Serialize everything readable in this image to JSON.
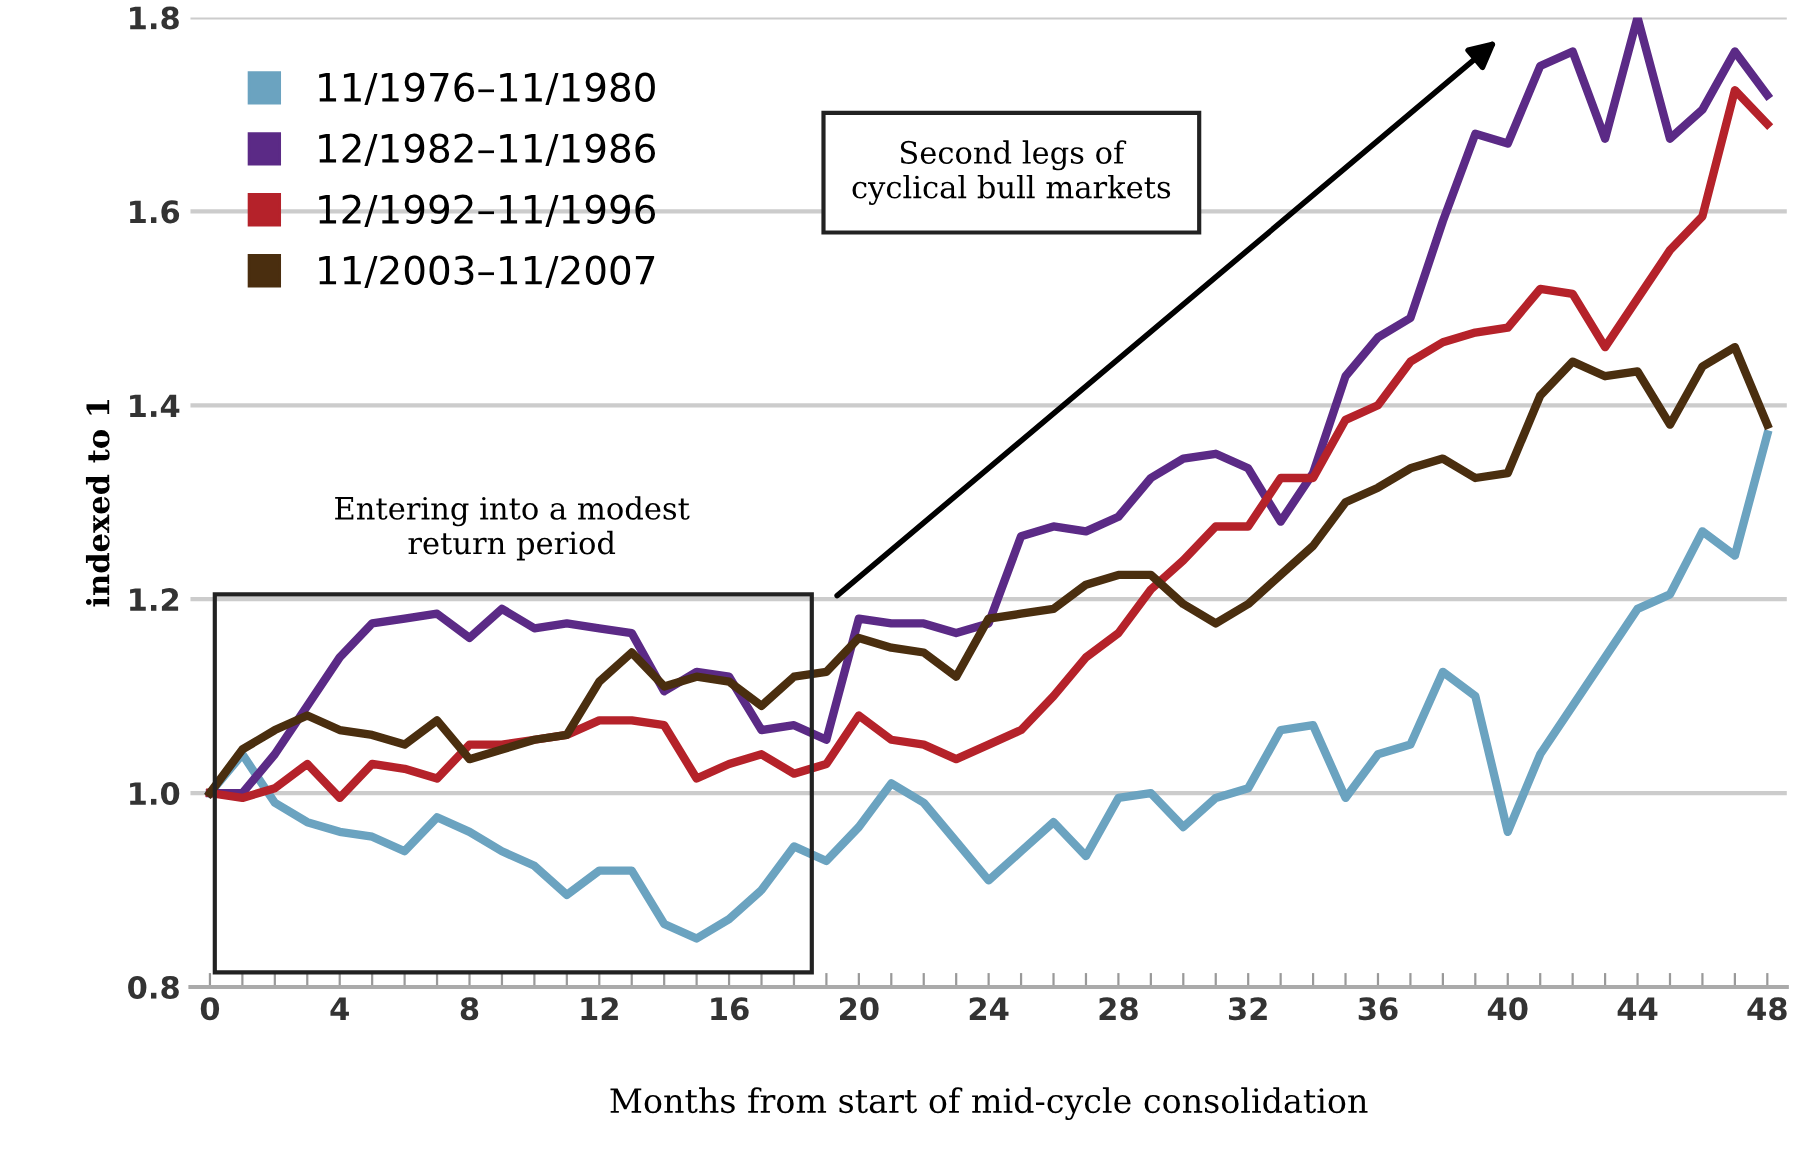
{
  "chart_data": {
    "type": "line",
    "xlabel": "Months from start of mid-cycle consolidation",
    "ylabel": "indexed to 1",
    "x": [
      0,
      1,
      2,
      3,
      4,
      5,
      6,
      7,
      8,
      9,
      10,
      11,
      12,
      13,
      14,
      15,
      16,
      17,
      18,
      19,
      20,
      21,
      22,
      23,
      24,
      25,
      26,
      27,
      28,
      29,
      30,
      31,
      32,
      33,
      34,
      35,
      36,
      37,
      38,
      39,
      40,
      41,
      42,
      43,
      44,
      45,
      46,
      47,
      48
    ],
    "series": [
      {
        "name": "11/1976–11/1980",
        "color": "#6ba3c0",
        "values": [
          1.0,
          1.04,
          0.99,
          0.97,
          0.96,
          0.955,
          0.94,
          0.975,
          0.96,
          0.94,
          0.925,
          0.895,
          0.92,
          0.92,
          0.865,
          0.85,
          0.87,
          0.9,
          0.945,
          0.93,
          0.965,
          1.01,
          0.99,
          0.95,
          0.91,
          0.94,
          0.97,
          0.935,
          0.995,
          1.0,
          0.965,
          0.995,
          1.005,
          1.065,
          1.07,
          0.995,
          1.04,
          1.05,
          1.125,
          1.1,
          0.96,
          1.04,
          1.09,
          1.14,
          1.19,
          1.205,
          1.27,
          1.245,
          1.37
        ]
      },
      {
        "name": "12/1982–11/1986",
        "color": "#5b2a86",
        "values": [
          1.0,
          1.0,
          1.04,
          1.09,
          1.14,
          1.175,
          1.18,
          1.185,
          1.16,
          1.19,
          1.17,
          1.175,
          1.17,
          1.165,
          1.105,
          1.125,
          1.12,
          1.065,
          1.07,
          1.055,
          1.18,
          1.175,
          1.175,
          1.165,
          1.175,
          1.265,
          1.275,
          1.27,
          1.285,
          1.325,
          1.345,
          1.35,
          1.335,
          1.28,
          1.33,
          1.43,
          1.47,
          1.49,
          1.59,
          1.68,
          1.67,
          1.75,
          1.765,
          1.675,
          1.8,
          1.675,
          1.705,
          1.765,
          1.72
        ]
      },
      {
        "name": "12/1992–11/1996",
        "color": "#b5222a",
        "values": [
          1.0,
          0.995,
          1.005,
          1.03,
          0.995,
          1.03,
          1.025,
          1.015,
          1.05,
          1.05,
          1.055,
          1.06,
          1.075,
          1.075,
          1.07,
          1.015,
          1.03,
          1.04,
          1.02,
          1.03,
          1.08,
          1.055,
          1.05,
          1.035,
          1.05,
          1.065,
          1.1,
          1.14,
          1.165,
          1.21,
          1.24,
          1.275,
          1.275,
          1.325,
          1.325,
          1.385,
          1.4,
          1.445,
          1.465,
          1.475,
          1.48,
          1.52,
          1.515,
          1.46,
          1.51,
          1.56,
          1.595,
          1.725,
          1.69
        ]
      },
      {
        "name": "11/2003–11/2007",
        "color": "#4a2e0f",
        "values": [
          1.0,
          1.045,
          1.065,
          1.08,
          1.065,
          1.06,
          1.05,
          1.075,
          1.035,
          1.045,
          1.055,
          1.06,
          1.115,
          1.145,
          1.11,
          1.12,
          1.115,
          1.09,
          1.12,
          1.125,
          1.16,
          1.15,
          1.145,
          1.12,
          1.18,
          1.185,
          1.19,
          1.215,
          1.225,
          1.225,
          1.195,
          1.175,
          1.195,
          1.225,
          1.255,
          1.3,
          1.315,
          1.335,
          1.345,
          1.325,
          1.33,
          1.41,
          1.445,
          1.43,
          1.435,
          1.38,
          1.44,
          1.46,
          1.38
        ]
      }
    ],
    "xlim": [
      -0.6,
      48.6
    ],
    "xticks": [
      0,
      {
        "value": 1,
        "label": null
      },
      {
        "value": 2,
        "label": null
      },
      {
        "value": 3,
        "label": null
      },
      4,
      {
        "value": 5,
        "label": null
      },
      {
        "value": 6,
        "label": null
      },
      {
        "value": 7,
        "label": null
      },
      8,
      {
        "value": 9,
        "label": null
      },
      {
        "value": 10,
        "label": null
      },
      {
        "value": 11,
        "label": null
      },
      12,
      {
        "value": 13,
        "label": null
      },
      {
        "value": 14,
        "label": null
      },
      {
        "value": 15,
        "label": null
      },
      16,
      {
        "value": 17,
        "label": null
      },
      {
        "value": 18,
        "label": null
      },
      {
        "value": 19,
        "label": null
      },
      20,
      {
        "value": 21,
        "label": null
      },
      {
        "value": 22,
        "label": null
      },
      {
        "value": 23,
        "label": null
      },
      24,
      {
        "value": 25,
        "label": null
      },
      {
        "value": 26,
        "label": null
      },
      {
        "value": 27,
        "label": null
      },
      28,
      {
        "value": 29,
        "label": null
      },
      {
        "value": 30,
        "label": null
      },
      {
        "value": 31,
        "label": null
      },
      32,
      {
        "value": 33,
        "label": null
      },
      {
        "value": 34,
        "label": null
      },
      {
        "value": 35,
        "label": null
      },
      36,
      {
        "value": 37,
        "label": null
      },
      {
        "value": 38,
        "label": null
      },
      {
        "value": 39,
        "label": null
      },
      40,
      {
        "value": 41,
        "label": null
      },
      {
        "value": 42,
        "label": null
      },
      {
        "value": 43,
        "label": null
      },
      44,
      {
        "value": 45,
        "label": null
      },
      {
        "value": 46,
        "label": null
      },
      {
        "value": 47,
        "label": null
      },
      48
    ],
    "ylim": [
      0.8,
      1.8
    ],
    "yticks": [
      {
        "value": 0.8,
        "label": "0.8"
      },
      {
        "value": 1.0,
        "label": "1.0"
      },
      {
        "value": 1.2,
        "label": "1.2"
      },
      {
        "value": 1.4,
        "label": "1.4"
      },
      {
        "value": 1.6,
        "label": "1.6"
      },
      {
        "value": 1.8,
        "label": "1.8"
      }
    ],
    "grid": "y",
    "legend": "top left",
    "line_style": "solid",
    "marker": "none",
    "annotations": [
      "Entering into a modest\nreturn period",
      "Second legs of\ncyclical bull markets"
    ]
  }
}
